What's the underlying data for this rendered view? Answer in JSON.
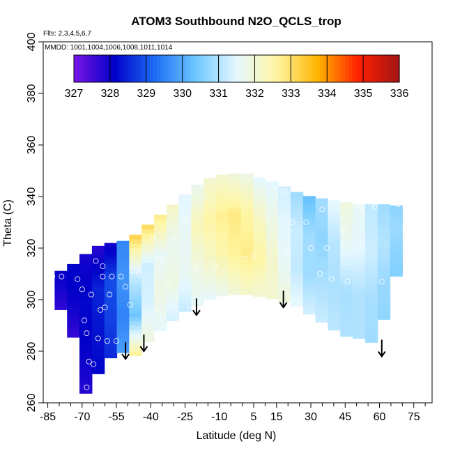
{
  "chart_data": {
    "type": "heatmap",
    "title": "ATOM3 Southbound N2O_QCLS_trop",
    "annotations": {
      "flights": "Flts: 2,3,4,5,6,7",
      "dates": "MMDD: 1001,1004,1006,1008,1011,1014"
    },
    "xlabel": "Latitude (deg N)",
    "ylabel": "Theta (C)",
    "xlim": [
      -87,
      83
    ],
    "ylim": [
      260,
      400
    ],
    "x_ticks": [
      -85,
      -70,
      -55,
      -40,
      -25,
      -10,
      5,
      15,
      30,
      45,
      60,
      75
    ],
    "y_ticks": [
      260,
      280,
      300,
      320,
      340,
      360,
      380,
      400
    ],
    "colorbar": {
      "min": 327,
      "max": 336,
      "ticks": [
        327,
        328,
        329,
        330,
        331,
        332,
        333,
        334,
        335,
        336
      ],
      "colors": [
        "#7a16e6",
        "#0000c8",
        "#1e6ef5",
        "#6ec8ff",
        "#e6f8ff",
        "#fff5a0",
        "#ffb400",
        "#ff2000",
        "#a01414"
      ]
    },
    "field_grid": {
      "latitudes": [
        -82,
        -75,
        -68,
        -61,
        -54,
        -47,
        -40,
        -33,
        -26,
        -19,
        -12,
        -5,
        2,
        9,
        16,
        23,
        30,
        37,
        44,
        51,
        58,
        65,
        70
      ],
      "theta_bottom": [
        300,
        290,
        262,
        275,
        280,
        278,
        285,
        290,
        295,
        298,
        301,
        302,
        302,
        301,
        300,
        298,
        294,
        290,
        286,
        285,
        283,
        300,
        320
      ],
      "theta_top": [
        310,
        313,
        318,
        322,
        322,
        325,
        330,
        335,
        340,
        345,
        348,
        349,
        349,
        347,
        345,
        342,
        340,
        339,
        338,
        337,
        337,
        337,
        336
      ],
      "values": [
        [
          327.7,
          327.8,
          327.9,
          328.0
        ],
        [
          327.6,
          327.9,
          328.1,
          328.2
        ],
        [
          327.8,
          328.1,
          328.2,
          327.9
        ],
        [
          328.3,
          328.4,
          328.6,
          327.7
        ],
        [
          328.8,
          329.2,
          329.2,
          328.2
        ],
        [
          332.8,
          330.3,
          331.2,
          333.3
        ],
        [
          331.7,
          331.6,
          331.3,
          333.1
        ],
        [
          331.4,
          332.0,
          331.8,
          332.6
        ],
        [
          331.1,
          331.6,
          331.5,
          331.4
        ],
        [
          331.6,
          331.9,
          332.4,
          331.7
        ],
        [
          331.5,
          332.3,
          332.6,
          332.2
        ],
        [
          331.9,
          332.6,
          332.9,
          331.9
        ],
        [
          332.1,
          332.8,
          332.6,
          331.8
        ],
        [
          332.0,
          332.5,
          332.1,
          331.4
        ],
        [
          332.1,
          331.8,
          331.6,
          331.5
        ],
        [
          331.6,
          331.2,
          331.3,
          330.9
        ],
        [
          331.3,
          330.8,
          330.8,
          330.2
        ],
        [
          331.2,
          331.0,
          330.6,
          331.2
        ],
        [
          331.0,
          330.9,
          331.6,
          332.0
        ],
        [
          331.0,
          331.0,
          331.5,
          331.6
        ],
        [
          330.8,
          330.9,
          331.2,
          331.0
        ],
        [
          330.6,
          330.7,
          330.9,
          330.7
        ],
        [
          330.5,
          330.6,
          330.7,
          330.6
        ]
      ]
    },
    "observations": [
      {
        "lat": -83,
        "theta": 309
      },
      {
        "lat": -79,
        "theta": 309
      },
      {
        "lat": -72,
        "theta": 308
      },
      {
        "lat": -70,
        "theta": 304
      },
      {
        "lat": -69,
        "theta": 292
      },
      {
        "lat": -68,
        "theta": 287
      },
      {
        "lat": -67,
        "theta": 276
      },
      {
        "lat": -65,
        "theta": 275
      },
      {
        "lat": -68,
        "theta": 266
      },
      {
        "lat": -66,
        "theta": 302
      },
      {
        "lat": -64,
        "theta": 315
      },
      {
        "lat": -61,
        "theta": 313
      },
      {
        "lat": -61,
        "theta": 309
      },
      {
        "lat": -62,
        "theta": 296
      },
      {
        "lat": -63,
        "theta": 285
      },
      {
        "lat": -60,
        "theta": 297
      },
      {
        "lat": -59,
        "theta": 284
      },
      {
        "lat": -58,
        "theta": 302
      },
      {
        "lat": -57,
        "theta": 309
      },
      {
        "lat": -56,
        "theta": 323
      },
      {
        "lat": -55,
        "theta": 284
      },
      {
        "lat": -53,
        "theta": 309
      },
      {
        "lat": -51,
        "theta": 305
      },
      {
        "lat": -49,
        "theta": 298
      },
      {
        "lat": -45,
        "theta": 310
      },
      {
        "lat": -39,
        "theta": 324
      },
      {
        "lat": -36,
        "theta": 316
      },
      {
        "lat": -32,
        "theta": 306
      },
      {
        "lat": -30,
        "theta": 324
      },
      {
        "lat": -28,
        "theta": 293
      },
      {
        "lat": -25,
        "theta": 331
      },
      {
        "lat": -23,
        "theta": 296
      },
      {
        "lat": -20,
        "theta": 312
      },
      {
        "lat": -16,
        "theta": 340
      },
      {
        "lat": -12,
        "theta": 313
      },
      {
        "lat": 1,
        "theta": 316
      },
      {
        "lat": 5,
        "theta": 317
      },
      {
        "lat": 10,
        "theta": 332
      },
      {
        "lat": 15,
        "theta": 298
      },
      {
        "lat": 18,
        "theta": 342
      },
      {
        "lat": 20,
        "theta": 319
      },
      {
        "lat": 22,
        "theta": 330
      },
      {
        "lat": 28,
        "theta": 330
      },
      {
        "lat": 30,
        "theta": 320
      },
      {
        "lat": 34,
        "theta": 310
      },
      {
        "lat": 35,
        "theta": 335
      },
      {
        "lat": 37,
        "theta": 320
      },
      {
        "lat": 39,
        "theta": 308
      },
      {
        "lat": 44,
        "theta": 327
      },
      {
        "lat": 46,
        "theta": 307
      },
      {
        "lat": 52,
        "theta": 336
      },
      {
        "lat": 58,
        "theta": 336
      },
      {
        "lat": 61,
        "theta": 307
      },
      {
        "lat": 68,
        "theta": 337
      }
    ],
    "arrows": [
      {
        "lat": -51,
        "theta": 277
      },
      {
        "lat": -43,
        "theta": 280
      },
      {
        "lat": -20,
        "theta": 294
      },
      {
        "lat": 18,
        "theta": 297
      },
      {
        "lat": 61,
        "theta": 278
      }
    ]
  }
}
